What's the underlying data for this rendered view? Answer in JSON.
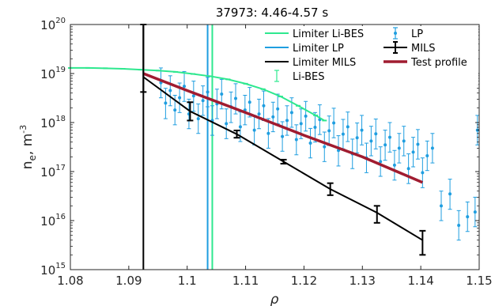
{
  "chart_data": {
    "type": "scatter",
    "title": "37973: 4.46-4.57 s",
    "xlabel": "ρ",
    "ylabel": "n_e, m^-3",
    "ylabel_main": "n",
    "ylabel_sub": "e",
    "ylabel_unit": ", m",
    "ylabel_exp": "-3",
    "xlim": [
      1.08,
      1.15
    ],
    "ylim": [
      1000000000000000.0,
      1e+20
    ],
    "yscale": "log",
    "x_ticks": [
      "1.08",
      "1.09",
      "1.1",
      "1.11",
      "1.12",
      "1.13",
      "1.14",
      "1.15"
    ],
    "y_ticks": [
      {
        "base": "10",
        "exp": "15"
      },
      {
        "base": "10",
        "exp": "16"
      },
      {
        "base": "10",
        "exp": "17"
      },
      {
        "base": "10",
        "exp": "18"
      },
      {
        "base": "10",
        "exp": "19"
      },
      {
        "base": "10",
        "exp": "20"
      }
    ],
    "grid": false,
    "legend_position": "top-right",
    "colors": {
      "limiter_libes": "#2ee88f",
      "limiter_lp": "#1f9ee0",
      "limiter_mils": "#000000",
      "libes": "#2ee88f",
      "lp": "#1f9ee0",
      "mils": "#000000",
      "test_profile": "#a01c30"
    },
    "legend": [
      {
        "key": "limiter_libes",
        "label": "Limiter Li-BES",
        "style": "line"
      },
      {
        "key": "lp",
        "label": "LP",
        "style": "errorbar"
      },
      {
        "key": "limiter_lp",
        "label": "Limiter LP",
        "style": "line"
      },
      {
        "key": "mils",
        "label": "MILS",
        "style": "errorbar"
      },
      {
        "key": "limiter_mils",
        "label": "Limiter MILS",
        "style": "line"
      },
      {
        "key": "test_profile",
        "label": "Test profile",
        "style": "thickline"
      },
      {
        "key": "libes",
        "label": "Li-BES",
        "style": "errorbar"
      }
    ],
    "limiters": [
      {
        "key": "limiter_mils",
        "x": 1.0925
      },
      {
        "key": "limiter_lp",
        "x": 1.1035
      },
      {
        "key": "limiter_libes",
        "x": 1.1043
      }
    ],
    "series": [
      {
        "key": "libes",
        "name": "Li-BES",
        "x": [
          1.08,
          1.083,
          1.086,
          1.089,
          1.092,
          1.095,
          1.098,
          1.101,
          1.104,
          1.107,
          1.11,
          1.113,
          1.116,
          1.119,
          1.122,
          1.1235
        ],
        "y": [
          1.3e+19,
          1.3e+19,
          1.28e+19,
          1.25e+19,
          1.2e+19,
          1.15e+19,
          1.08e+19,
          9.8e+18,
          8.8e+18,
          7.6e+18,
          6.2e+18,
          4.8e+18,
          3.4e+18,
          2.2e+18,
          1.4e+18,
          1.1e+18
        ]
      },
      {
        "key": "mils",
        "name": "MILS",
        "x": [
          1.0925,
          1.1005,
          1.1085,
          1.1165,
          1.1245,
          1.1325,
          1.1403
        ],
        "y": [
          8.5e+18,
          1.7e+18,
          5.8e+17,
          1.6e+17,
          4.4e+16,
          1.45e+16,
          4000000000000000.0
        ],
        "yerr_low": [
          4.2e+18,
          1.1e+18,
          4.9e+17,
          1.45e+17,
          3.3e+16,
          9000000000000000.0,
          2000000000000000.0
        ],
        "yerr_high": [
          1e+20,
          2.6e+18,
          6.9e+17,
          1.75e+17,
          5.8e+16,
          2e+16,
          6200000000000000.0
        ]
      },
      {
        "key": "test_profile",
        "name": "Test profile",
        "x": [
          1.0925,
          1.1,
          1.11,
          1.12,
          1.13,
          1.1403
        ],
        "y": [
          1e+19,
          4.5e+18,
          1.6e+18,
          5.5e+17,
          2e+17,
          6e+16
        ]
      },
      {
        "key": "lp",
        "name": "LP",
        "x": [
          1.0955,
          1.0963,
          1.0971,
          1.0979,
          1.0987,
          1.0995,
          1.1003,
          1.1011,
          1.1019,
          1.1027,
          1.1035,
          1.1043,
          1.1051,
          1.1059,
          1.1067,
          1.1075,
          1.1083,
          1.1091,
          1.1099,
          1.1107,
          1.1115,
          1.1123,
          1.1131,
          1.1139,
          1.1147,
          1.1155,
          1.1163,
          1.1171,
          1.1179,
          1.1187,
          1.1195,
          1.1203,
          1.1211,
          1.1219,
          1.1227,
          1.1235,
          1.1243,
          1.1251,
          1.1259,
          1.1267,
          1.1275,
          1.1283,
          1.1291,
          1.1299,
          1.1307,
          1.1315,
          1.1323,
          1.1331,
          1.1339,
          1.1347,
          1.1355,
          1.1363,
          1.1371,
          1.1379,
          1.1387,
          1.1395,
          1.1403,
          1.1411,
          1.142,
          1.1435,
          1.145,
          1.1465,
          1.148,
          1.1493,
          1.1497
        ],
        "y": [
          6.5e+18,
          2.5e+18,
          4.5e+18,
          1.8e+18,
          3.2e+18,
          5.5e+18,
          1.5e+18,
          3.5e+18,
          1.2e+18,
          2.8e+18,
          4.2e+18,
          1.1e+18,
          2.4e+18,
          3.8e+18,
          9.5e+17,
          2.1e+18,
          3.1e+18,
          8.2e+17,
          1.8e+18,
          2.6e+18,
          7e+17,
          1.5e+18,
          2.2e+18,
          6e+17,
          1.3e+18,
          1.9e+18,
          5.2e+17,
          1.1e+18,
          1.6e+18,
          4.5e+17,
          9.5e+17,
          1.35e+18,
          3.8e+17,
          8e+17,
          1.15e+18,
          3.2e+17,
          6.8e+17,
          9.8e+17,
          2.7e+17,
          5.8e+17,
          8.2e+17,
          2.3e+17,
          4.9e+17,
          7e+17,
          1.9e+17,
          4.2e+17,
          5.9e+17,
          1.6e+17,
          3.5e+17,
          5e+17,
          1.35e+17,
          3e+17,
          4.2e+17,
          1.15e+17,
          2.5e+17,
          3.6e+17,
          9.5e+16,
          2.1e+17,
          3e+17,
          2e+16,
          3.5e+16,
          8000000000000000.0,
          1.2e+16,
          1.5e+16,
          7e+17
        ],
        "yerr_low": [
          3.2e+18,
          1.2e+18,
          2.2e+18,
          9e+17,
          1.6e+18,
          2.7e+18,
          7.5e+17,
          1.7e+18,
          6e+17,
          1.4e+18,
          2.1e+18,
          5.5e+17,
          1.2e+18,
          1.9e+18,
          4.7e+17,
          1e+18,
          1.5e+18,
          4.1e+17,
          9e+17,
          1.3e+18,
          3.5e+17,
          7.5e+17,
          1.1e+18,
          3e+17,
          6.5e+17,
          9.5e+17,
          2.6e+17,
          5.5e+17,
          8e+17,
          2.2e+17,
          4.7e+17,
          6.7e+17,
          1.9e+17,
          4e+17,
          5.7e+17,
          1.6e+17,
          3.4e+17,
          4.9e+17,
          1.3e+17,
          2.9e+17,
          4.1e+17,
          1.15e+17,
          2.4e+17,
          3.5e+17,
          9.5e+16,
          2.1e+17,
          2.9e+17,
          8e+16,
          1.7e+17,
          2.5e+17,
          6.7e+16,
          1.5e+17,
          2.1e+17,
          5.7e+16,
          1.25e+17,
          1.8e+17,
          4.7e+16,
          1.05e+17,
          1.5e+17,
          1e+16,
          1.7e+16,
          4000000000000000.0,
          6000000000000000.0,
          7500000000000000.0,
          3.5e+17
        ],
        "yerr_high": [
          1.3e+19,
          5e+18,
          9e+18,
          3.6e+18,
          6.4e+18,
          1.1e+19,
          3e+18,
          7e+18,
          2.4e+18,
          5.6e+18,
          8.4e+18,
          2.2e+18,
          4.8e+18,
          7.6e+18,
          1.9e+18,
          4.2e+18,
          6.2e+18,
          1.64e+18,
          3.6e+18,
          5.2e+18,
          1.4e+18,
          3e+18,
          4.4e+18,
          1.2e+18,
          2.6e+18,
          3.8e+18,
          1.04e+18,
          2.2e+18,
          3.2e+18,
          9e+17,
          1.9e+18,
          2.7e+18,
          7.6e+17,
          1.6e+18,
          2.3e+18,
          6.4e+17,
          1.36e+18,
          1.96e+18,
          5.4e+17,
          1.16e+18,
          1.64e+18,
          4.6e+17,
          9.8e+17,
          1.4e+18,
          3.8e+17,
          8.4e+17,
          1.18e+18,
          3.2e+17,
          7e+17,
          1e+18,
          2.7e+17,
          6e+17,
          8.4e+17,
          2.3e+17,
          5e+17,
          7.2e+17,
          1.9e+17,
          4.2e+17,
          6e+17,
          4e+16,
          7e+16,
          1.6e+16,
          2.4e+16,
          3e+16,
          1.4e+18
        ]
      }
    ]
  }
}
